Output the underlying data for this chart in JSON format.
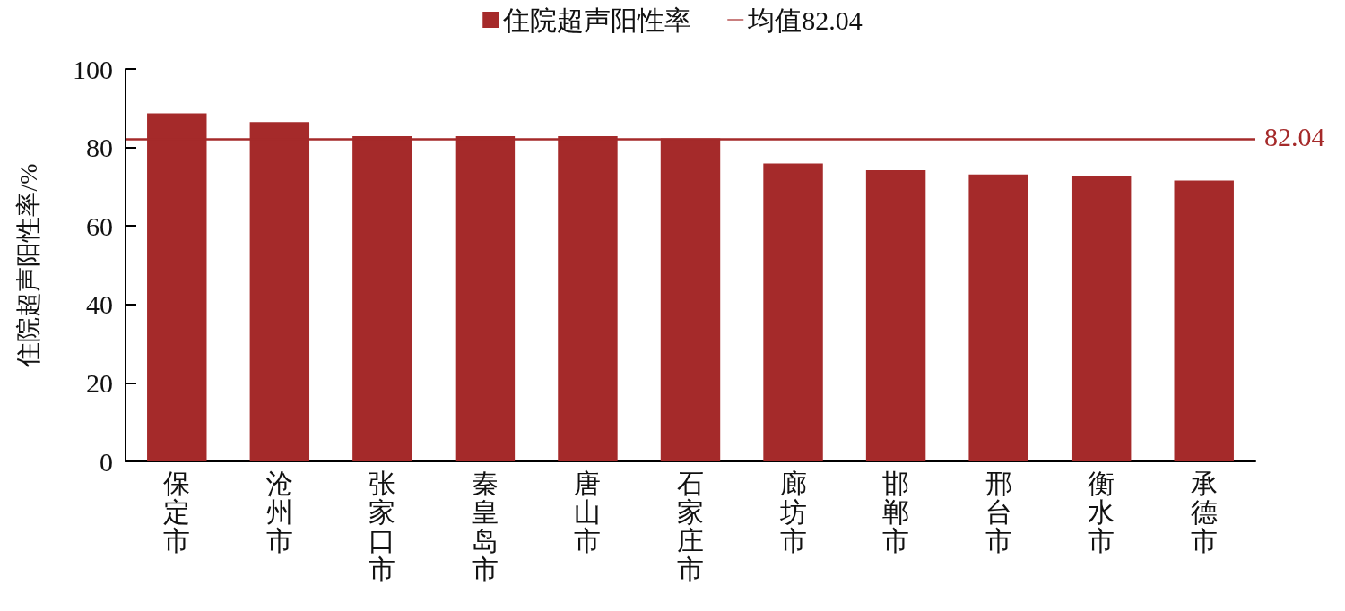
{
  "chart_data": {
    "type": "bar",
    "ylabel": "住院超声阳性率/%",
    "categories": [
      "保定市",
      "沧州市",
      "张家口市",
      "秦皇岛市",
      "唐山市",
      "石家庄市",
      "廊坊市",
      "邯郸市",
      "邢台市",
      "衡水市",
      "承德市"
    ],
    "series": [
      {
        "name": "住院超声阳性率",
        "color": "#a52a2a",
        "values": [
          88.7,
          86.5,
          82.9,
          82.9,
          82.9,
          82.3,
          75.9,
          74.2,
          73.1,
          72.8,
          71.6
        ]
      }
    ],
    "ylim": [
      0,
      100
    ],
    "yticks": [
      0,
      20,
      40,
      60,
      80,
      100
    ],
    "ref_lines": [
      {
        "axis": "y",
        "value": 82.04,
        "label": "均值82.04",
        "color": "#a52a2a",
        "line_style": "solid"
      }
    ],
    "annotations": [
      "82.04"
    ],
    "legend": "top",
    "grid": false
  }
}
